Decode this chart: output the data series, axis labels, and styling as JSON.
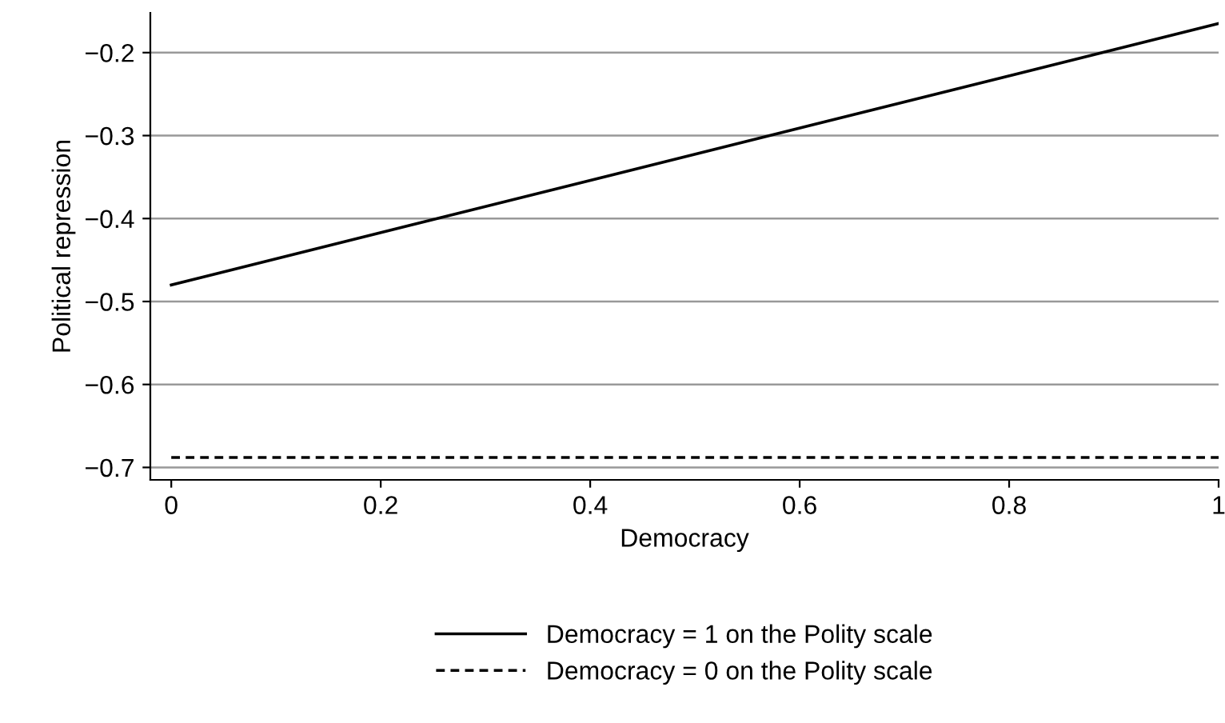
{
  "chart_data": {
    "type": "line",
    "xlabel": "Democracy",
    "ylabel": "Political repression",
    "x": [
      0,
      1
    ],
    "series": [
      {
        "name": "Democracy = 1 on the Polity scale",
        "color": "#000000",
        "values": [
          -0.48,
          -0.165
        ],
        "line_style": "solid"
      },
      {
        "name": "Democracy = 0 on the Polity scale",
        "color": "#000000",
        "values": [
          -0.688,
          -0.688
        ],
        "line_style": "dashed"
      }
    ],
    "xlim": [
      -0.02,
      1.0
    ],
    "ylim": [
      -0.715,
      -0.152
    ],
    "xticks": [
      0,
      0.2,
      0.4,
      0.6,
      0.8,
      1
    ],
    "yticks": [
      {
        "value": -0.7,
        "label": "−0.7"
      },
      {
        "value": -0.6,
        "label": "−0.6"
      },
      {
        "value": -0.5,
        "label": "−0.5"
      },
      {
        "value": -0.4,
        "label": "−0.4"
      },
      {
        "value": -0.3,
        "label": "−0.3"
      },
      {
        "value": -0.2,
        "label": "−0.2"
      }
    ],
    "grid": "y",
    "legend": "bottom",
    "marker": "none"
  }
}
